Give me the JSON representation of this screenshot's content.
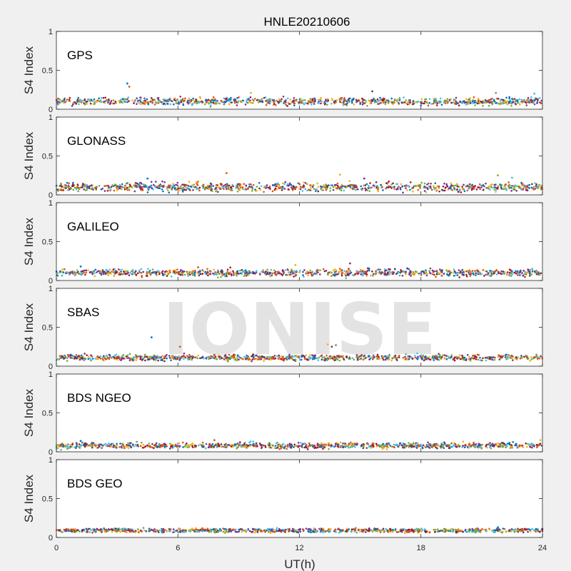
{
  "title": "HNLE20210606",
  "watermark": "IONISE",
  "xlabel": "UT(h)",
  "ylabel": "S4 Index",
  "x_ticks": [
    "0",
    "6",
    "12",
    "18",
    "24"
  ],
  "y_ticks": [
    "0",
    "0.5",
    "1"
  ],
  "series_colors": [
    "#0072BD",
    "#D95319",
    "#EDB120",
    "#7E2F8E",
    "#77AC30",
    "#4DBEEE",
    "#A2142F"
  ],
  "chart_data": [
    {
      "type": "scatter",
      "title": "GPS",
      "xlim": [
        0,
        24
      ],
      "ylim": [
        0,
        1
      ],
      "xlabel": "",
      "ylabel": "S4 Index",
      "base_level": 0.1,
      "spread": 0.04,
      "spikes": [
        [
          3.5,
          0.33
        ],
        [
          3.6,
          0.29
        ],
        [
          9.6,
          0.21
        ],
        [
          15.6,
          0.23
        ],
        [
          21.7,
          0.21
        ],
        [
          23.6,
          0.2
        ]
      ]
    },
    {
      "type": "scatter",
      "title": "GLONASS",
      "xlim": [
        0,
        24
      ],
      "ylim": [
        0,
        1
      ],
      "xlabel": "",
      "ylabel": "S4 Index",
      "base_level": 0.1,
      "spread": 0.05,
      "spikes": [
        [
          4.5,
          0.21
        ],
        [
          8.4,
          0.28
        ],
        [
          14.0,
          0.26
        ],
        [
          15.2,
          0.21
        ],
        [
          21.8,
          0.25
        ],
        [
          22.5,
          0.22
        ]
      ]
    },
    {
      "type": "scatter",
      "title": "GALILEO",
      "xlim": [
        0,
        24
      ],
      "ylim": [
        0,
        1
      ],
      "xlabel": "",
      "ylabel": "S4 Index",
      "base_level": 0.1,
      "spread": 0.04,
      "spikes": [
        [
          1.2,
          0.18
        ],
        [
          7.0,
          0.17
        ],
        [
          11.8,
          0.2
        ],
        [
          14.5,
          0.22
        ]
      ]
    },
    {
      "type": "scatter",
      "title": "SBAS",
      "xlim": [
        0,
        24
      ],
      "ylim": [
        0,
        1
      ],
      "xlabel": "",
      "ylabel": "S4 Index",
      "base_level": 0.11,
      "spread": 0.03,
      "spikes": [
        [
          4.7,
          0.37
        ],
        [
          6.1,
          0.25
        ],
        [
          13.4,
          0.28
        ],
        [
          13.6,
          0.25
        ],
        [
          13.8,
          0.27
        ]
      ]
    },
    {
      "type": "scatter",
      "title": "BDS NGEO",
      "xlim": [
        0,
        24
      ],
      "ylim": [
        0,
        1
      ],
      "xlabel": "",
      "ylabel": "S4 Index",
      "base_level": 0.08,
      "spread": 0.03,
      "spikes": [
        [
          1.2,
          0.14
        ],
        [
          7.8,
          0.15
        ],
        [
          23.9,
          0.15
        ]
      ]
    },
    {
      "type": "scatter",
      "title": "BDS GEO",
      "xlim": [
        0,
        24
      ],
      "ylim": [
        0,
        1
      ],
      "xlabel": "",
      "ylabel": "S4 Index",
      "base_level": 0.09,
      "spread": 0.015,
      "spikes": [
        [
          21.8,
          0.13
        ]
      ]
    }
  ]
}
